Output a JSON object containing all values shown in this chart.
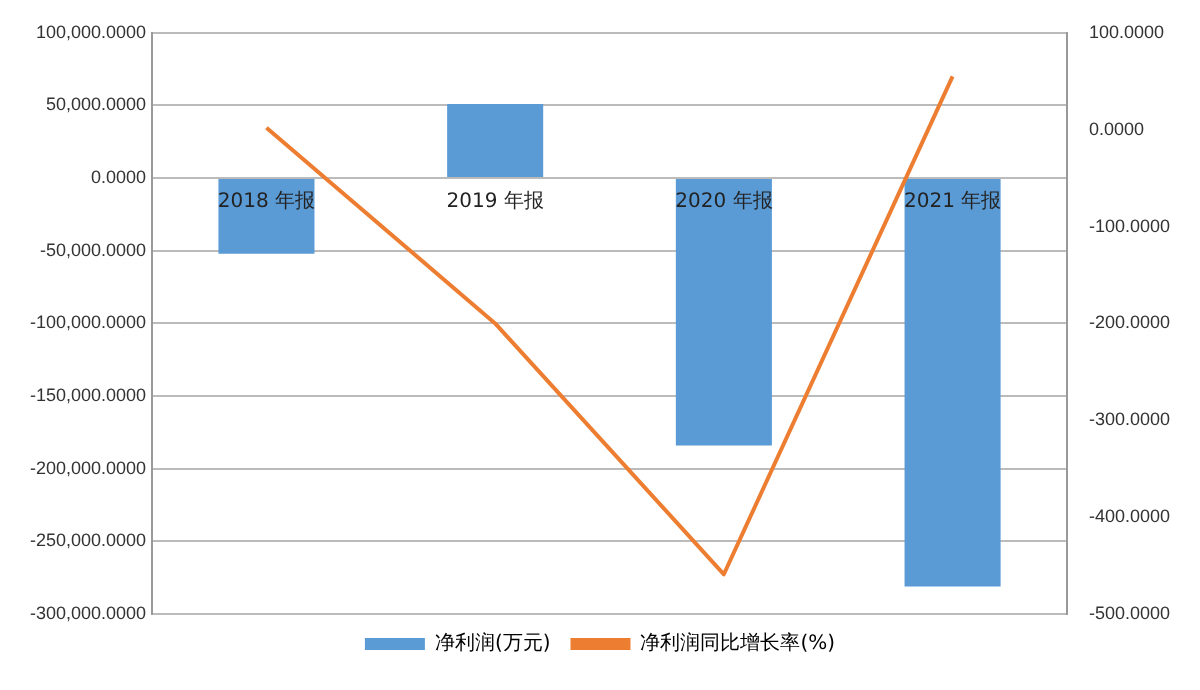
{
  "chart_data": {
    "type": "bar",
    "categories": [
      "2018 年报",
      "2019 年报",
      "2020 年报",
      "2021 年报"
    ],
    "series": [
      {
        "name": "净利润(万元)",
        "color": "#5b9bd5",
        "values": [
          -52000,
          51000,
          -184000,
          -281000
        ]
      },
      {
        "name": "净利润同比增长率(%)",
        "type": "line",
        "axis": "y2",
        "color": "#ed7d31",
        "marker": "none",
        "values": [
          2,
          -200,
          -459,
          55
        ]
      }
    ],
    "ylim": [
      -300000,
      100000
    ],
    "yticks": [
      {
        "value": 100000,
        "label": "100,000.0000"
      },
      {
        "value": 50000,
        "label": "50,000.0000"
      },
      {
        "value": 0,
        "label": "0.0000"
      },
      {
        "value": -50000,
        "label": "-50,000.0000"
      },
      {
        "value": -100000,
        "label": "-100,000.0000"
      },
      {
        "value": -150000,
        "label": "-150,000.0000"
      },
      {
        "value": -200000,
        "label": "-200,000.0000"
      },
      {
        "value": -250000,
        "label": "-250,000.0000"
      },
      {
        "value": -300000,
        "label": "-300,000.0000"
      }
    ],
    "y2lim": [
      -500,
      100
    ],
    "y2ticks": [
      {
        "value": 100,
        "label": "100.0000"
      },
      {
        "value": 0,
        "label": "0.0000"
      },
      {
        "value": -100,
        "label": "-100.0000"
      },
      {
        "value": -200,
        "label": "-200.0000"
      },
      {
        "value": -300,
        "label": "-300.0000"
      },
      {
        "value": -400,
        "label": "-400.0000"
      },
      {
        "value": -500,
        "label": "-500.0000"
      }
    ],
    "grid": "y",
    "legend": "bottom"
  }
}
